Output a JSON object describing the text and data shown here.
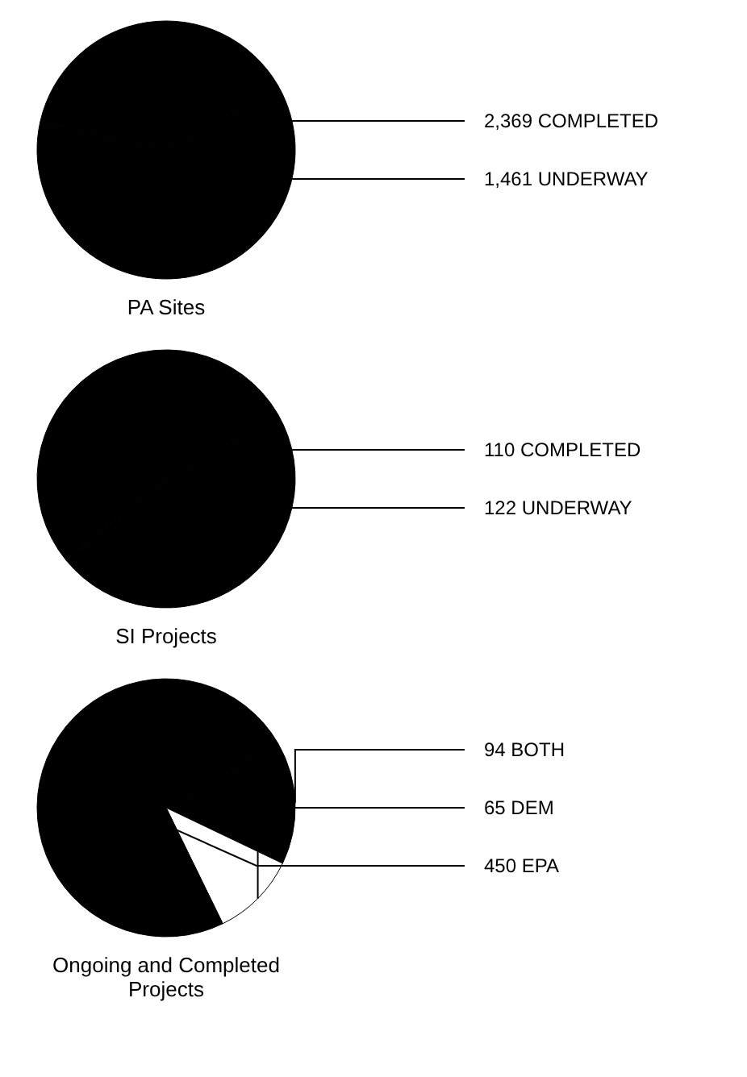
{
  "chart_data": [
    {
      "type": "pie",
      "title": "PA Sites",
      "categories": [
        "COMPLETED",
        "UNDERWAY"
      ],
      "values": [
        2369,
        1461
      ],
      "value_labels": [
        "2,369",
        "1,461"
      ],
      "colors": [
        "#000000",
        "#000000"
      ]
    },
    {
      "type": "pie",
      "title": "SI Projects",
      "categories": [
        "COMPLETED",
        "UNDERWAY"
      ],
      "values": [
        110,
        122
      ],
      "value_labels": [
        "110",
        "122"
      ],
      "colors": [
        "#000000",
        "#000000"
      ]
    },
    {
      "type": "pie",
      "title": "Ongoing and Completed Projects",
      "categories": [
        "BOTH",
        "DEM",
        "EPA"
      ],
      "values": [
        94,
        65,
        450
      ],
      "value_labels": [
        "94",
        "65",
        "450"
      ],
      "colors": [
        "#000000",
        "#ffffff",
        "#000000"
      ]
    }
  ]
}
